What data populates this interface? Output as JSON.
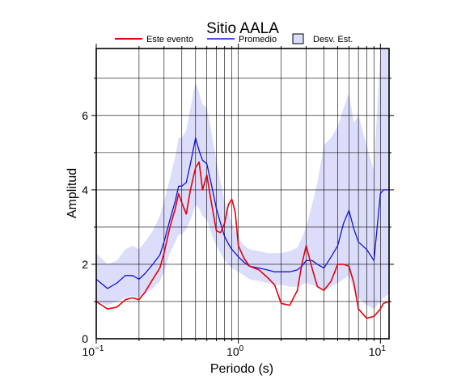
{
  "chart_data": {
    "type": "line",
    "title": "Sitio AALA",
    "xlabel": "Periodo (s)",
    "ylabel": "Amplitud",
    "xscale": "log",
    "xlim": [
      0.1,
      11.5
    ],
    "ylim": [
      0,
      7.8
    ],
    "grid": true,
    "legend_position": "top",
    "x_ticks": [
      {
        "value": 0.1,
        "base": "10",
        "exp": "−1"
      },
      {
        "value": 1,
        "base": "10",
        "exp": "0"
      },
      {
        "value": 10,
        "base": "10",
        "exp": "1"
      }
    ],
    "y_ticks": [
      {
        "value": 0,
        "label": "0"
      },
      {
        "value": 2,
        "label": "2"
      },
      {
        "value": 4,
        "label": "4"
      },
      {
        "value": 6,
        "label": "6"
      }
    ],
    "x": [
      0.1,
      0.12,
      0.14,
      0.16,
      0.18,
      0.2,
      0.22,
      0.25,
      0.28,
      0.3,
      0.33,
      0.36,
      0.38,
      0.4,
      0.43,
      0.46,
      0.5,
      0.53,
      0.56,
      0.6,
      0.65,
      0.7,
      0.75,
      0.8,
      0.85,
      0.9,
      0.95,
      1.0,
      1.1,
      1.2,
      1.4,
      1.6,
      1.8,
      2.0,
      2.3,
      2.6,
      2.8,
      3.0,
      3.3,
      3.6,
      4.0,
      4.5,
      5.0,
      5.5,
      6.0,
      6.5,
      7.0,
      8.0,
      9.0,
      10.0,
      10.5,
      11.5
    ],
    "series": [
      {
        "name": "Este evento",
        "color": "#e8000b",
        "values": [
          1.0,
          0.8,
          0.85,
          1.05,
          1.1,
          1.05,
          1.25,
          1.6,
          1.9,
          2.3,
          3.0,
          3.5,
          3.9,
          3.65,
          3.35,
          4.0,
          4.6,
          4.75,
          4.0,
          4.4,
          3.6,
          2.9,
          2.85,
          3.1,
          3.6,
          3.75,
          3.4,
          2.5,
          2.15,
          1.95,
          1.85,
          1.65,
          1.45,
          0.95,
          0.9,
          1.3,
          2.0,
          2.5,
          1.9,
          1.4,
          1.3,
          1.55,
          2.0,
          2.0,
          1.95,
          1.5,
          0.8,
          0.55,
          0.6,
          0.8,
          0.95,
          1.0
        ]
      },
      {
        "name": "Promedio",
        "color": "#1414d8",
        "values": [
          1.6,
          1.35,
          1.5,
          1.7,
          1.7,
          1.6,
          1.75,
          2.0,
          2.25,
          2.6,
          3.2,
          3.7,
          4.1,
          4.1,
          4.2,
          4.7,
          5.4,
          5.05,
          4.8,
          4.7,
          4.1,
          3.5,
          3.1,
          2.75,
          2.55,
          2.4,
          2.3,
          2.2,
          2.05,
          1.95,
          1.9,
          1.85,
          1.8,
          1.8,
          1.8,
          1.85,
          1.95,
          2.1,
          2.1,
          2.0,
          1.9,
          2.2,
          2.5,
          3.1,
          3.45,
          2.95,
          2.6,
          2.4,
          2.1,
          3.9,
          4.0,
          4.0
        ]
      },
      {
        "name": "Desv. Est.",
        "color": "#dcdcfb",
        "lower": [
          1.0,
          0.9,
          1.0,
          1.1,
          1.15,
          1.1,
          1.2,
          1.35,
          1.55,
          1.8,
          2.3,
          2.6,
          2.8,
          2.8,
          2.95,
          3.2,
          3.6,
          3.5,
          3.3,
          3.2,
          2.8,
          2.5,
          2.3,
          2.1,
          2.0,
          1.9,
          1.85,
          1.8,
          1.7,
          1.6,
          1.55,
          1.5,
          1.45,
          1.45,
          1.4,
          1.4,
          1.45,
          1.5,
          1.45,
          1.4,
          1.3,
          1.4,
          1.5,
          1.6,
          1.7,
          1.3,
          1.1,
          0.9,
          0.8,
          1.0,
          1.1,
          1.2
        ],
        "upper": [
          2.3,
          2.0,
          2.1,
          2.4,
          2.5,
          2.4,
          2.6,
          2.9,
          3.3,
          3.7,
          4.3,
          4.9,
          5.4,
          5.4,
          5.6,
          6.2,
          6.9,
          6.6,
          6.3,
          6.2,
          5.5,
          4.8,
          4.2,
          3.7,
          3.4,
          3.1,
          2.9,
          2.7,
          2.5,
          2.4,
          2.35,
          2.3,
          2.3,
          2.3,
          2.35,
          2.45,
          2.7,
          3.0,
          3.6,
          4.2,
          5.2,
          5.4,
          5.7,
          6.2,
          6.6,
          5.8,
          6.0,
          5.2,
          4.5,
          7.8,
          7.8,
          7.8
        ]
      }
    ]
  }
}
